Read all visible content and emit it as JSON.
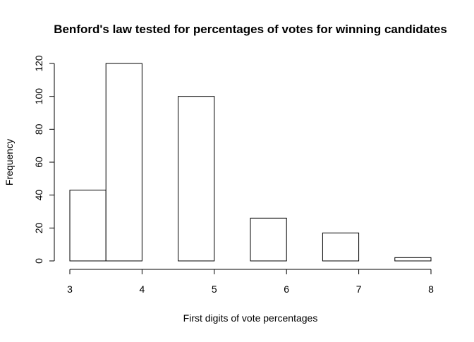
{
  "chart_data": {
    "type": "bar",
    "title": "Benford's law tested for percentages of votes for winning candidates",
    "xlabel": "First digits of vote percentages",
    "ylabel": "Frequency",
    "xlim": [
      3,
      8
    ],
    "ylim": [
      0,
      120
    ],
    "x_ticks": [
      "3",
      "4",
      "5",
      "6",
      "7",
      "8"
    ],
    "y_ticks": [
      "0",
      "20",
      "40",
      "60",
      "80",
      "100",
      "120"
    ],
    "bins": [
      {
        "from": 3.0,
        "to": 3.5,
        "value": 43
      },
      {
        "from": 3.5,
        "to": 4.0,
        "value": 120
      },
      {
        "from": 4.0,
        "to": 4.5,
        "value": 0
      },
      {
        "from": 4.5,
        "to": 5.0,
        "value": 100
      },
      {
        "from": 5.0,
        "to": 5.5,
        "value": 0
      },
      {
        "from": 5.5,
        "to": 6.0,
        "value": 26
      },
      {
        "from": 6.0,
        "to": 6.5,
        "value": 0
      },
      {
        "from": 6.5,
        "to": 7.0,
        "value": 17
      },
      {
        "from": 7.0,
        "to": 7.5,
        "value": 0
      },
      {
        "from": 7.5,
        "to": 8.0,
        "value": 2
      }
    ],
    "bar_fill": "#ffffff",
    "bar_stroke": "#000000",
    "grid": false
  }
}
